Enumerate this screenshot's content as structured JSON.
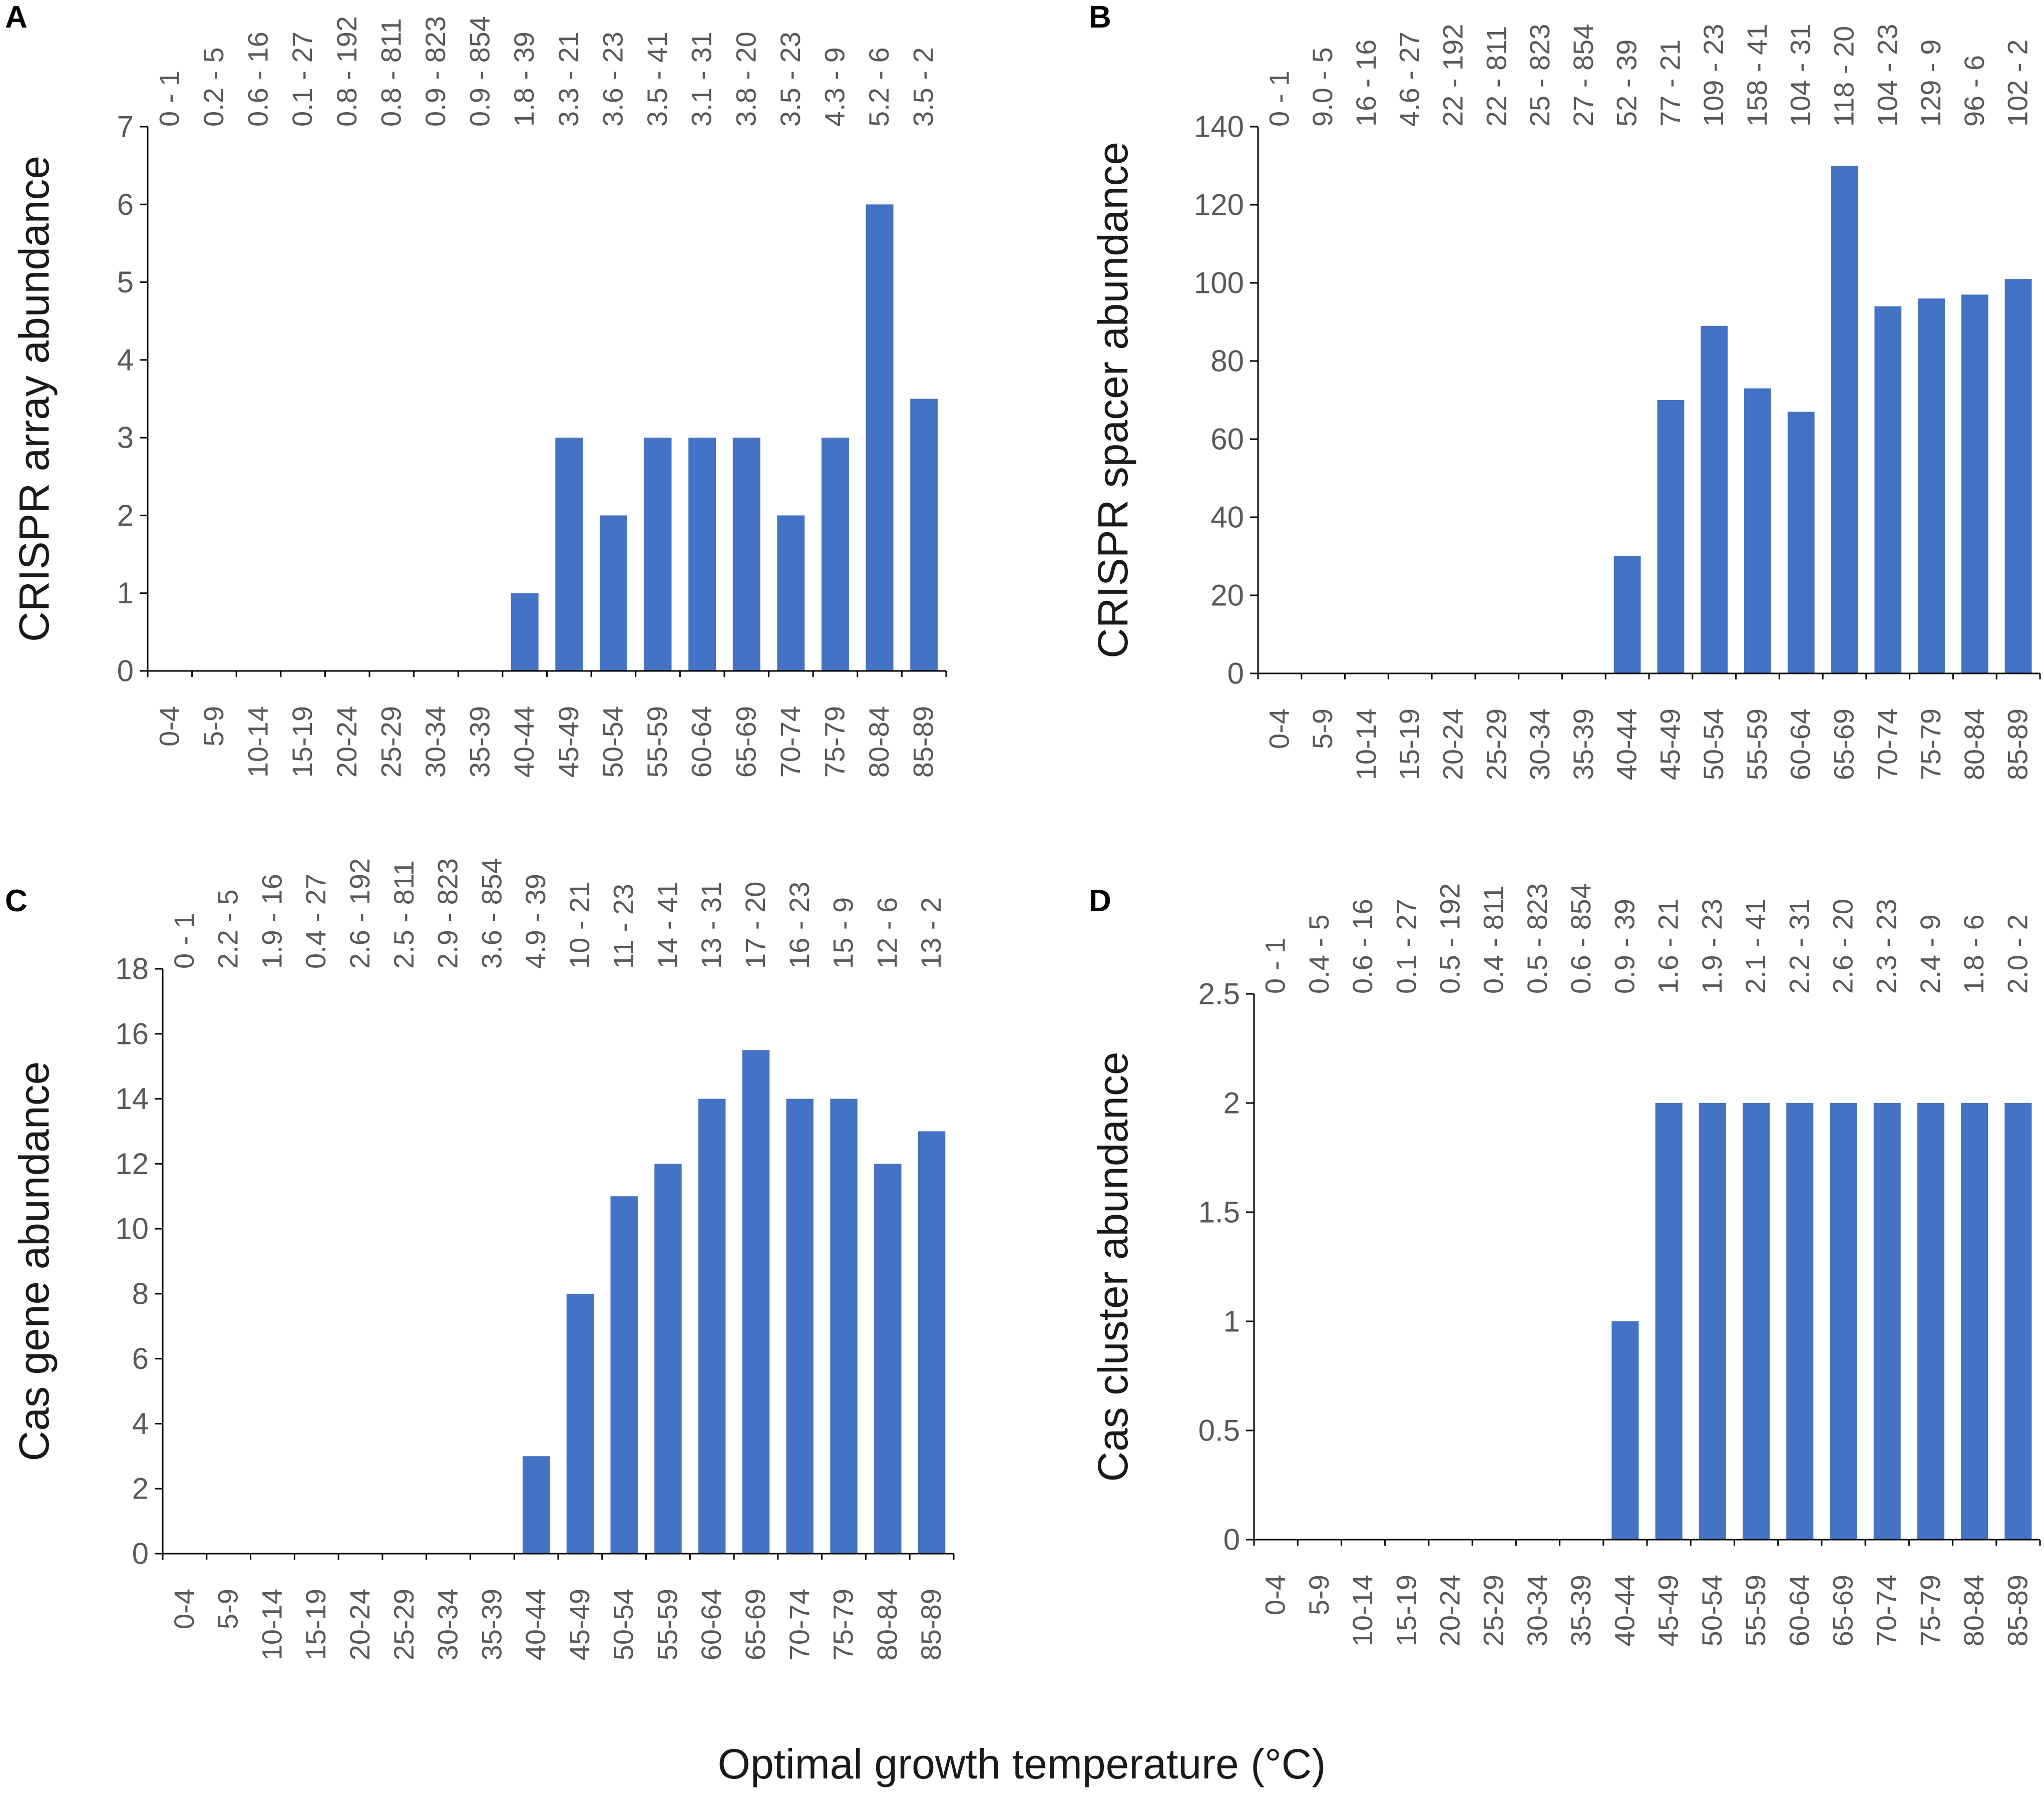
{
  "x_axis_title": "Optimal growth temperature (°C)",
  "bar_color": "#4472c4",
  "chart_data": [
    {
      "panel": "A",
      "type": "bar",
      "ylabel": "CRISPR array abundance",
      "ylim": [
        0,
        7
      ],
      "yticks": [
        "0",
        "1",
        "2",
        "3",
        "4",
        "5",
        "6",
        "7"
      ],
      "categories": [
        "0-4",
        "5-9",
        "10-14",
        "15-19",
        "20-24",
        "25-29",
        "30-34",
        "35-39",
        "40-44",
        "45-49",
        "50-54",
        "55-59",
        "60-64",
        "65-69",
        "70-74",
        "75-79",
        "80-84",
        "85-89"
      ],
      "values": [
        0,
        0,
        0,
        0,
        0,
        0,
        0,
        0,
        1,
        3,
        2,
        3,
        3,
        3,
        2,
        3,
        6,
        3.5
      ],
      "top_labels": [
        "0 - 1",
        "0.2 - 5",
        "0.6 - 16",
        "0.1 - 27",
        "0.8 - 192",
        "0.8 - 811",
        "0.9 - 823",
        "0.9 - 854",
        "1.8 - 39",
        "3.3 - 21",
        "3.6 - 23",
        "3.5 - 41",
        "3.1 - 31",
        "3.8 - 20",
        "3.5 - 23",
        "4.3 - 9",
        "5.2 - 6",
        "3.5 - 2"
      ]
    },
    {
      "panel": "B",
      "type": "bar",
      "ylabel": "CRISPR spacer abundance",
      "ylim": [
        0,
        140
      ],
      "yticks": [
        "0",
        "20",
        "40",
        "60",
        "80",
        "100",
        "120",
        "140"
      ],
      "categories": [
        "0-4",
        "5-9",
        "10-14",
        "15-19",
        "20-24",
        "25-29",
        "30-34",
        "35-39",
        "40-44",
        "45-49",
        "50-54",
        "55-59",
        "60-64",
        "65-69",
        "70-74",
        "75-79",
        "80-84",
        "85-89"
      ],
      "values": [
        0,
        0,
        0,
        0,
        0,
        0,
        0,
        0,
        30,
        70,
        89,
        73,
        67,
        130,
        94,
        96,
        97,
        101
      ],
      "top_labels": [
        "0 - 1",
        "9.0 - 5",
        "16 - 16",
        "4.6 - 27",
        "22 - 192",
        "22 - 811",
        "25 - 823",
        "27 - 854",
        "52 - 39",
        "77 - 21",
        "109 - 23",
        "158 - 41",
        "104 - 31",
        "118 - 20",
        "104 - 23",
        "129 - 9",
        "96 - 6",
        "102 - 2"
      ]
    },
    {
      "panel": "C",
      "type": "bar",
      "ylabel": "Cas gene abundance",
      "ylim": [
        0,
        18
      ],
      "yticks": [
        "0",
        "2",
        "4",
        "6",
        "8",
        "10",
        "12",
        "14",
        "16",
        "18"
      ],
      "categories": [
        "0-4",
        "5-9",
        "10-14",
        "15-19",
        "20-24",
        "25-29",
        "30-34",
        "35-39",
        "40-44",
        "45-49",
        "50-54",
        "55-59",
        "60-64",
        "65-69",
        "70-74",
        "75-79",
        "80-84",
        "85-89"
      ],
      "values": [
        0,
        0,
        0,
        0,
        0,
        0,
        0,
        0,
        3,
        8,
        11,
        12,
        14,
        15.5,
        14,
        14,
        12,
        13
      ],
      "top_labels": [
        "0 - 1",
        "2.2 - 5",
        "1.9 - 16",
        "0.4 - 27",
        "2.6 - 192",
        "2.5 - 811",
        "2.9 - 823",
        "3.6 - 854",
        "4.9 - 39",
        "10 - 21",
        "11 - 23",
        "14 - 41",
        "13 - 31",
        "17 - 20",
        "16 - 23",
        "15 - 9",
        "12 - 6",
        "13 - 2"
      ]
    },
    {
      "panel": "D",
      "type": "bar",
      "ylabel": "Cas cluster abundance",
      "ylim": [
        0,
        2.5
      ],
      "yticks": [
        "0",
        "0.5",
        "1",
        "1.5",
        "2",
        "2.5"
      ],
      "categories": [
        "0-4",
        "5-9",
        "10-14",
        "15-19",
        "20-24",
        "25-29",
        "30-34",
        "35-39",
        "40-44",
        "45-49",
        "50-54",
        "55-59",
        "60-64",
        "65-69",
        "70-74",
        "75-79",
        "80-84",
        "85-89"
      ],
      "values": [
        0,
        0,
        0,
        0,
        0,
        0,
        0,
        0,
        1,
        2,
        2,
        2,
        2,
        2,
        2,
        2,
        2,
        2
      ],
      "top_labels": [
        "0 - 1",
        "0.4 - 5",
        "0.6 - 16",
        "0.1 - 27",
        "0.5 - 192",
        "0.4 - 811",
        "0.5 - 823",
        "0.6 - 854",
        "0.9 - 39",
        "1.6 - 21",
        "1.9 - 23",
        "2.1 - 41",
        "2.2 - 31",
        "2.6 - 20",
        "2.3 - 23",
        "2.4 - 9",
        "1.8 - 6",
        "2.0 - 2"
      ]
    }
  ]
}
